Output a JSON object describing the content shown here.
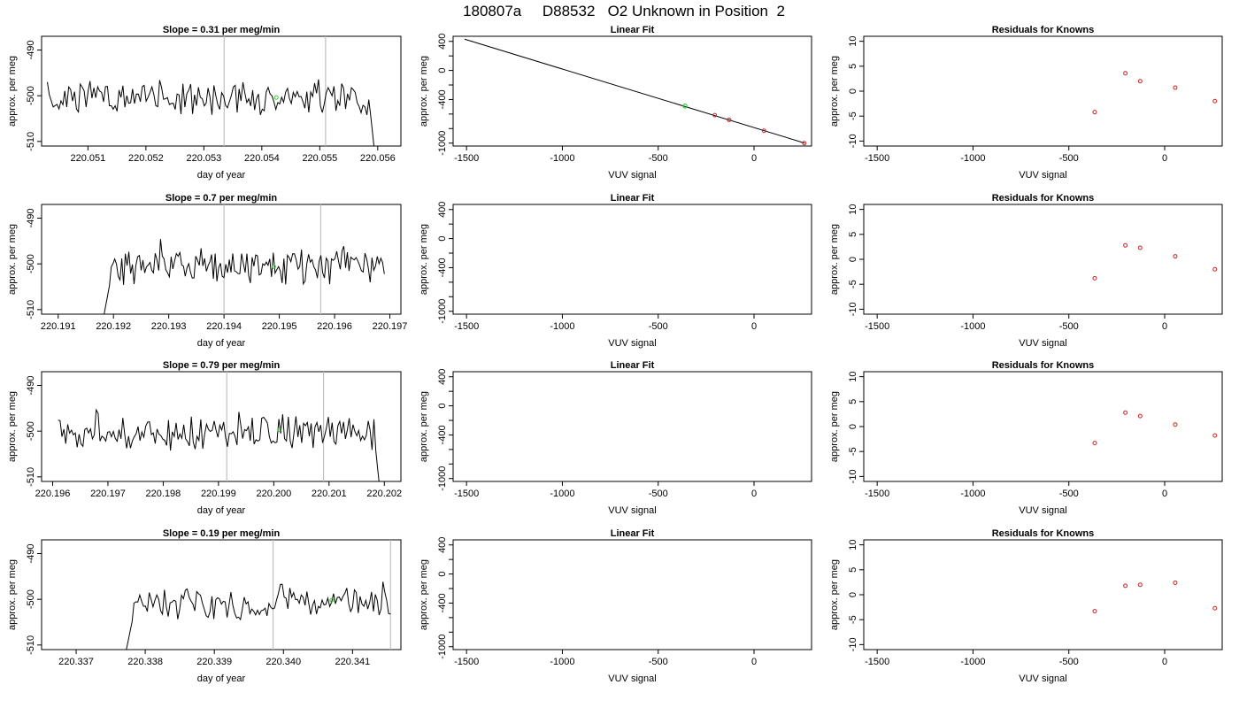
{
  "figure_title": "180807a     D88532   O2 Unknown in Position  2",
  "chart_data": [
    {
      "panel": "timeseries-1",
      "type": "line",
      "title": "Slope =  0.31  per meg/min",
      "xlabel": "day of year",
      "ylabel": "approx. per meg",
      "xlim": [
        220.0502,
        220.0564
      ],
      "ylim": [
        -511,
        -487
      ],
      "xticks": [
        220.051,
        220.052,
        220.053,
        220.054,
        220.055,
        220.056
      ],
      "yticks": [
        -490,
        -500,
        -510
      ],
      "vlines": [
        220.05335,
        220.0551
      ],
      "marker": {
        "x": 220.05425,
        "y": -500.4
      },
      "seed": 17,
      "start": 220.0503,
      "end": 220.05598,
      "drop_end": true,
      "rise_start": null,
      "level": -500.4,
      "n": 170
    },
    {
      "panel": "timeseries-2",
      "type": "line",
      "title": "Slope =  0.7  per meg/min",
      "xlabel": "day of year",
      "ylabel": "approx. per meg",
      "xlim": [
        220.1907,
        220.1972
      ],
      "ylim": [
        -511,
        -487
      ],
      "xticks": [
        220.191,
        220.192,
        220.193,
        220.194,
        220.195,
        220.196,
        220.197
      ],
      "yticks": [
        -490,
        -500,
        -510
      ],
      "vlines": [
        220.194,
        220.19575
      ],
      "marker": {
        "x": 220.1949,
        "y": -500.6
      },
      "seed": 29,
      "start": 220.1918,
      "end": 220.1969,
      "drop_end": false,
      "rise_start": true,
      "level": -500.6,
      "n": 160
    },
    {
      "panel": "timeseries-3",
      "type": "line",
      "title": "Slope =  0.79  per meg/min",
      "xlabel": "day of year",
      "ylabel": "approx. per meg",
      "xlim": [
        220.1958,
        220.2023
      ],
      "ylim": [
        -511,
        -487
      ],
      "xticks": [
        220.196,
        220.197,
        220.198,
        220.199,
        220.2,
        220.201,
        220.202
      ],
      "yticks": [
        -490,
        -500,
        -510
      ],
      "xtick_labels": [
        "220.196",
        "220.197",
        "220.198",
        "220.199",
        "220.200",
        "220.201",
        "220.202"
      ],
      "vlines": [
        220.19915,
        220.2009
      ],
      "marker": {
        "x": 220.2001,
        "y": -499.7
      },
      "seed": 43,
      "start": 220.1961,
      "end": 220.20195,
      "drop_end": true,
      "rise_start": null,
      "level": -500.4,
      "n": 170
    },
    {
      "panel": "timeseries-4",
      "type": "line",
      "title": "Slope =  0.19  per meg/min",
      "xlabel": "day of year",
      "ylabel": "approx. per meg",
      "xlim": [
        220.3365,
        220.3417
      ],
      "ylim": [
        -511,
        -487
      ],
      "xticks": [
        220.337,
        220.338,
        220.339,
        220.34,
        220.341
      ],
      "yticks": [
        -490,
        -500,
        -510
      ],
      "xtick_labels": [
        "220.337",
        "220.338",
        "220.339",
        "220.340",
        "220.341"
      ],
      "vlines": [
        220.33985,
        220.34155
      ],
      "marker": {
        "x": 220.3407,
        "y": -500.2
      },
      "seed": 71,
      "start": 220.3377,
      "end": 220.34155,
      "drop_end": false,
      "rise_start": true,
      "level": -500.8,
      "n": 140
    },
    {
      "panel": "linear-fit",
      "type": "scatter",
      "title": "Linear Fit",
      "xlabel": "VUV signal",
      "ylabel": "approx. per meg",
      "xlim": [
        -1570,
        300
      ],
      "ylim": [
        -1040,
        470
      ],
      "xticks": [
        -1500,
        -1000,
        -500,
        0
      ],
      "yticks": [
        400,
        0,
        -400,
        -1000
      ],
      "yticks_minor": [
        200,
        -200,
        -600,
        -800
      ],
      "fit_line": {
        "x": [
          -1510,
          265
        ],
        "y": [
          430,
          -1000
        ]
      },
      "known_points": [
        {
          "x": -205,
          "y": -615
        },
        {
          "x": -130,
          "y": -680
        },
        {
          "x": 52,
          "y": -830
        },
        {
          "x": 262,
          "y": -1000
        }
      ],
      "unknown_point": {
        "x": -360,
        "y": -490
      }
    },
    {
      "panel": "residuals-1",
      "type": "scatter",
      "title": "Residuals for Knowns",
      "xlabel": "VUV signal",
      "ylabel": "approx. per meg",
      "xlim": [
        -1570,
        300
      ],
      "ylim": [
        -11,
        11
      ],
      "xticks": [
        -1500,
        -1000,
        -500,
        0
      ],
      "yticks": [
        10,
        5,
        0,
        -5,
        -10
      ],
      "points": [
        {
          "x": -365,
          "y": -4.2
        },
        {
          "x": -205,
          "y": 3.6
        },
        {
          "x": -128,
          "y": 2.0
        },
        {
          "x": 55,
          "y": 0.7
        },
        {
          "x": 262,
          "y": -2.0
        }
      ]
    },
    {
      "panel": "residuals-2",
      "type": "scatter",
      "title": "Residuals for Knowns",
      "xlabel": "VUV signal",
      "ylabel": "approx. per meg",
      "xlim": [
        -1570,
        300
      ],
      "ylim": [
        -11,
        11
      ],
      "xticks": [
        -1500,
        -1000,
        -500,
        0
      ],
      "yticks": [
        10,
        5,
        0,
        -5,
        -10
      ],
      "points": [
        {
          "x": -365,
          "y": -3.8
        },
        {
          "x": -205,
          "y": 2.8
        },
        {
          "x": -128,
          "y": 2.3
        },
        {
          "x": 55,
          "y": 0.6
        },
        {
          "x": 262,
          "y": -2.0
        }
      ]
    },
    {
      "panel": "residuals-3",
      "type": "scatter",
      "title": "Residuals for Knowns",
      "xlabel": "VUV signal",
      "ylabel": "approx. per meg",
      "xlim": [
        -1570,
        300
      ],
      "ylim": [
        -11,
        11
      ],
      "xticks": [
        -1500,
        -1000,
        -500,
        0
      ],
      "yticks": [
        10,
        5,
        0,
        -5,
        -10
      ],
      "points": [
        {
          "x": -365,
          "y": -3.3
        },
        {
          "x": -205,
          "y": 2.8
        },
        {
          "x": -128,
          "y": 2.1
        },
        {
          "x": 55,
          "y": 0.4
        },
        {
          "x": 262,
          "y": -1.8
        }
      ]
    },
    {
      "panel": "residuals-4",
      "type": "scatter",
      "title": "Residuals for Knowns",
      "xlabel": "VUV signal",
      "ylabel": "approx. per meg",
      "xlim": [
        -1570,
        300
      ],
      "ylim": [
        -11,
        11
      ],
      "xticks": [
        -1500,
        -1000,
        -500,
        0
      ],
      "yticks": [
        10,
        5,
        0,
        -5,
        -10
      ],
      "points": [
        {
          "x": -365,
          "y": -3.3
        },
        {
          "x": -205,
          "y": 1.8
        },
        {
          "x": -128,
          "y": 2.0
        },
        {
          "x": 55,
          "y": 2.4
        },
        {
          "x": 262,
          "y": -2.7
        }
      ]
    }
  ],
  "colors": {
    "series": "#000000",
    "known_points": "#cc2222",
    "unknown_point": "#33cc33",
    "vlines": "#c0c0c0",
    "frame": "#000000"
  }
}
